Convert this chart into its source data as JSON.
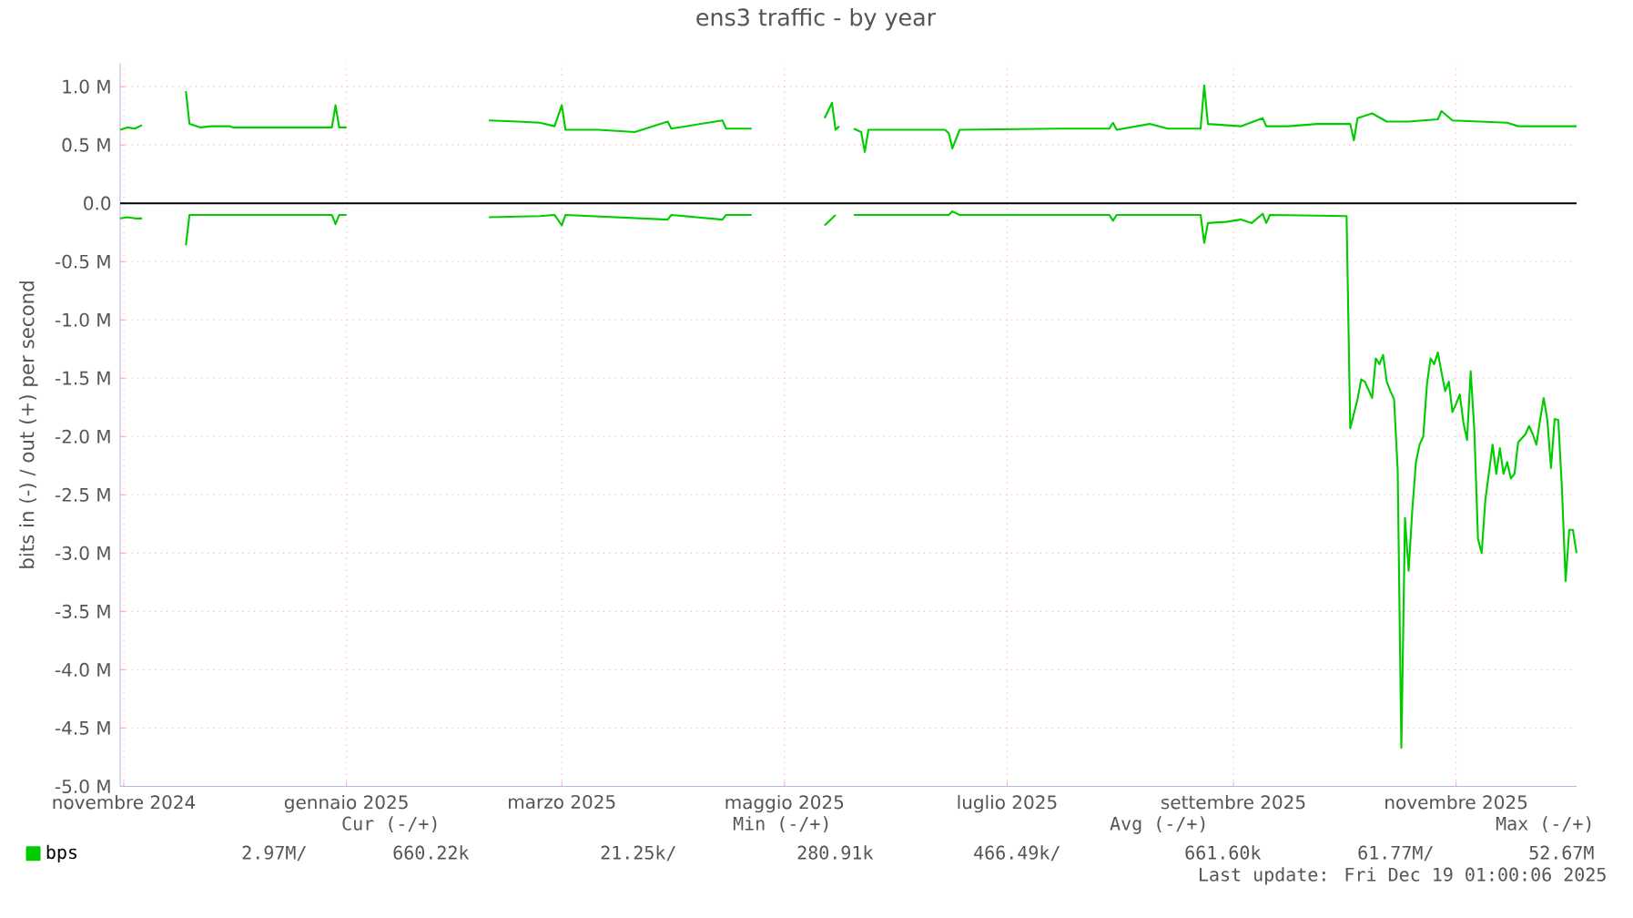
{
  "chart_data": {
    "type": "line",
    "title": "ens3 traffic - by year",
    "ylabel": "bits in (-) / out (+) per second",
    "xlim": [
      "2024-11-15",
      "2025-12-19"
    ],
    "xticks": [
      {
        "value": "2024-11-16",
        "label": "novembre 2024"
      },
      {
        "value": "2025-01-16",
        "label": "gennaio 2025"
      },
      {
        "value": "2025-03-16",
        "label": "marzo 2025"
      },
      {
        "value": "2025-05-16",
        "label": "maggio 2025"
      },
      {
        "value": "2025-07-16",
        "label": "luglio 2025"
      },
      {
        "value": "2025-09-16",
        "label": "settembre 2025"
      },
      {
        "value": "2025-11-16",
        "label": "novembre 2025"
      }
    ],
    "ylim": [
      -5.0,
      1.2
    ],
    "yticks": [
      {
        "value": 1.0,
        "label": "1.0 M"
      },
      {
        "value": 0.5,
        "label": "0.5 M"
      },
      {
        "value": 0.0,
        "label": "0.0"
      },
      {
        "value": -0.5,
        "label": "-0.5 M"
      },
      {
        "value": -1.0,
        "label": "-1.0 M"
      },
      {
        "value": -1.5,
        "label": "-1.5 M"
      },
      {
        "value": -2.0,
        "label": "-2.0 M"
      },
      {
        "value": -2.5,
        "label": "-2.5 M"
      },
      {
        "value": -3.0,
        "label": "-3.0 M"
      },
      {
        "value": -3.5,
        "label": "-3.5 M"
      },
      {
        "value": -4.0,
        "label": "-4.0 M"
      },
      {
        "value": -4.5,
        "label": "-4.5 M"
      },
      {
        "value": -5.0,
        "label": "-5.0 M"
      }
    ],
    "grid": true,
    "legend": "bottom left",
    "ref_lines": [
      {
        "axis": "y",
        "value": 0,
        "color": "#000000"
      }
    ],
    "series": [
      {
        "name": "bps",
        "color": "#00cc00",
        "x": [
          "2024-11-15",
          "2024-11-17",
          "2024-11-19",
          "2024-11-21",
          "2024-12-01",
          "2024-12-03",
          "2024-12-04",
          "2024-12-07",
          "2024-12-10",
          "2024-12-15",
          "2024-12-16",
          "2025-01-12",
          "2025-01-13",
          "2025-01-14",
          "2025-01-16",
          "2025-02-15",
          "2025-02-24",
          "2025-03-04",
          "2025-03-10",
          "2025-03-14",
          "2025-03-16",
          "2025-03-17",
          "2025-03-26",
          "2025-04-05",
          "2025-04-14",
          "2025-04-15",
          "2025-04-29",
          "2025-04-30",
          "2025-05-07",
          "2025-05-12",
          "2025-05-27",
          "2025-05-29",
          "2025-05-30",
          "2025-05-31",
          "2025-06-02",
          "2025-06-04",
          "2025-06-06",
          "2025-06-07",
          "2025-06-08",
          "2025-06-20",
          "2025-06-29",
          "2025-06-30",
          "2025-07-01",
          "2025-07-03",
          "2025-07-30",
          "2025-08-13",
          "2025-08-14",
          "2025-08-15",
          "2025-08-24",
          "2025-08-29",
          "2025-09-07",
          "2025-09-08",
          "2025-09-09",
          "2025-09-18",
          "2025-09-24",
          "2025-09-25",
          "2025-10-01",
          "2025-10-09",
          "2025-10-18",
          "2025-10-19",
          "2025-10-20",
          "2025-10-24",
          "2025-10-28",
          "2025-11-03",
          "2025-11-11",
          "2025-11-12",
          "2025-11-15",
          "2025-11-30",
          "2025-12-03",
          "2025-12-19"
        ],
        "values": [
          0.63,
          0.65,
          0.64,
          0.67,
          null,
          0.96,
          0.68,
          0.65,
          0.66,
          0.66,
          0.65,
          0.65,
          0.84,
          0.65,
          0.65,
          null,
          0.71,
          0.7,
          0.69,
          0.66,
          0.84,
          0.63,
          0.63,
          0.61,
          0.7,
          0.64,
          0.71,
          0.64,
          0.64,
          null,
          0.73,
          0.86,
          0.63,
          0.66,
          null,
          0.64,
          0.61,
          0.44,
          0.63,
          0.63,
          0.63,
          0.6,
          0.47,
          0.63,
          0.64,
          0.64,
          0.69,
          0.63,
          0.68,
          0.64,
          0.64,
          1.01,
          0.68,
          0.66,
          0.73,
          0.66,
          0.66,
          0.68,
          0.68,
          0.54,
          0.73,
          0.77,
          0.7,
          0.7,
          0.72,
          0.79,
          0.71,
          0.69,
          0.66,
          0.66
        ]
      },
      {
        "color": "#00cc00",
        "x": [
          "2024-11-15",
          "2024-11-17",
          "2024-11-19",
          "2024-11-21",
          "2024-12-01",
          "2024-12-03",
          "2024-12-04",
          "2025-01-12",
          "2025-01-13",
          "2025-01-14",
          "2025-01-16",
          "2025-02-15",
          "2025-02-24",
          "2025-03-10",
          "2025-03-14",
          "2025-03-16",
          "2025-03-17",
          "2025-04-14",
          "2025-04-15",
          "2025-04-29",
          "2025-04-30",
          "2025-05-07",
          "2025-05-12",
          "2025-05-27",
          "2025-05-30",
          "2025-06-02",
          "2025-06-04",
          "2025-06-30",
          "2025-07-01",
          "2025-07-03",
          "2025-08-13",
          "2025-08-14",
          "2025-08-15",
          "2025-09-07",
          "2025-09-08",
          "2025-09-09",
          "2025-09-14",
          "2025-09-18",
          "2025-09-21",
          "2025-09-24",
          "2025-09-25",
          "2025-09-26",
          "2025-10-17",
          "2025-10-18",
          "2025-10-20",
          "2025-10-21",
          "2025-10-22",
          "2025-10-24",
          "2025-10-25",
          "2025-10-26",
          "2025-10-27",
          "2025-10-28",
          "2025-10-29",
          "2025-10-30",
          "2025-10-31",
          "2025-11-01",
          "2025-11-02",
          "2025-11-03",
          "2025-11-04",
          "2025-11-05",
          "2025-11-06",
          "2025-11-07",
          "2025-11-08",
          "2025-11-09",
          "2025-11-10",
          "2025-11-11",
          "2025-11-12",
          "2025-11-13",
          "2025-11-14",
          "2025-11-15",
          "2025-11-16",
          "2025-11-17",
          "2025-11-18",
          "2025-11-19",
          "2025-11-20",
          "2025-11-21",
          "2025-11-22",
          "2025-11-23",
          "2025-11-24",
          "2025-11-26",
          "2025-11-27",
          "2025-11-28",
          "2025-11-29",
          "2025-11-30",
          "2025-12-01",
          "2025-12-02",
          "2025-12-03",
          "2025-12-05",
          "2025-12-06",
          "2025-12-07",
          "2025-12-08",
          "2025-12-09",
          "2025-12-10",
          "2025-12-11",
          "2025-12-12",
          "2025-12-13",
          "2025-12-14",
          "2025-12-15",
          "2025-12-16",
          "2025-12-17",
          "2025-12-18",
          "2025-12-19"
        ],
        "values": [
          -0.13,
          -0.12,
          -0.13,
          -0.13,
          null,
          -0.36,
          -0.1,
          -0.1,
          -0.18,
          -0.1,
          -0.1,
          null,
          -0.12,
          -0.11,
          -0.1,
          -0.19,
          -0.1,
          -0.14,
          -0.1,
          -0.14,
          -0.1,
          -0.1,
          null,
          -0.19,
          -0.1,
          null,
          -0.1,
          -0.1,
          -0.07,
          -0.1,
          -0.1,
          -0.15,
          -0.1,
          -0.1,
          -0.34,
          -0.17,
          -0.16,
          -0.14,
          -0.17,
          -0.09,
          -0.17,
          -0.1,
          -0.11,
          -1.93,
          -1.68,
          -1.51,
          -1.53,
          -1.67,
          -1.33,
          -1.38,
          -1.3,
          -1.53,
          -1.61,
          -1.68,
          -2.29,
          -4.67,
          -2.7,
          -3.15,
          -2.63,
          -2.22,
          -2.07,
          -2.0,
          -1.56,
          -1.33,
          -1.38,
          -1.28,
          -1.45,
          -1.61,
          -1.53,
          -1.79,
          -1.72,
          -1.64,
          -1.88,
          -2.03,
          -1.44,
          -1.95,
          -2.88,
          -3.0,
          -2.55,
          -2.07,
          -2.32,
          -2.1,
          -2.32,
          -2.22,
          -2.36,
          -2.32,
          -2.05,
          -1.98,
          -1.91,
          -1.98,
          -2.07,
          -1.86,
          -1.67,
          -1.86,
          -2.27,
          -1.85,
          -1.86,
          -2.45,
          -3.24,
          -2.8,
          -2.8,
          -3.0
        ]
      }
    ],
    "annotations": [
      "Cur (-/+)",
      "Min (-/+)",
      "Avg (-/+)",
      "Max (-/+)",
      "2.97M/",
      "660.22k",
      "21.25k/",
      "280.91k",
      "466.49k/",
      "661.60k",
      "61.77M/",
      "52.67M",
      "Last update: Fri Dec 19 01:00:06 2025"
    ]
  }
}
